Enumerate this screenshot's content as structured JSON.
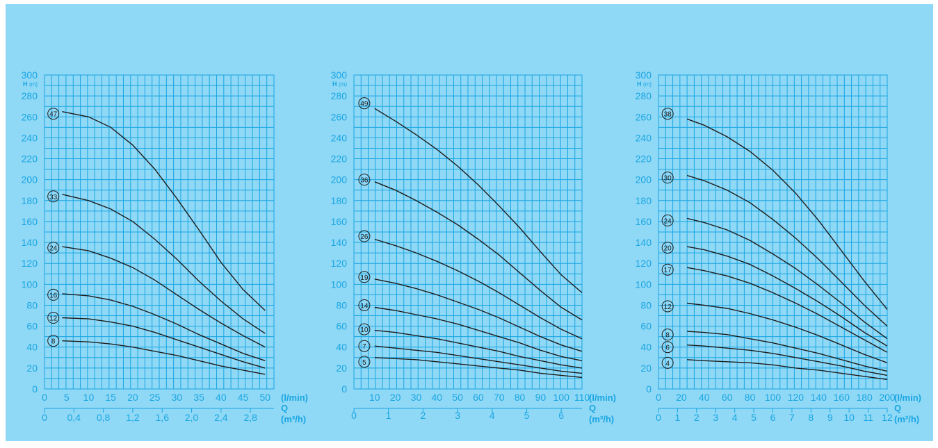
{
  "chart_data": [
    {
      "type": "line",
      "y_axis": {
        "label": "H",
        "unit": "(m)",
        "ticks": [
          0,
          20,
          40,
          60,
          80,
          100,
          120,
          140,
          160,
          180,
          200,
          220,
          240,
          260,
          280,
          300
        ],
        "ylim": [
          0,
          300
        ]
      },
      "x_axis": {
        "label": "Q",
        "unit_primary": "(l/min)",
        "unit_secondary": "(m³/h)",
        "xlim": [
          0,
          52
        ],
        "ticks_primary": [
          0,
          5,
          10,
          15,
          20,
          25,
          30,
          35,
          40,
          45,
          50
        ],
        "ticks_secondary": [
          {
            "value": 0,
            "label": "0"
          },
          {
            "value": 6.67,
            "label": "0,4"
          },
          {
            "value": 13.33,
            "label": "0,8"
          },
          {
            "value": 20,
            "label": "1,2"
          },
          {
            "value": 26.67,
            "label": "1,6"
          },
          {
            "value": 33.33,
            "label": "2,0"
          },
          {
            "value": 40,
            "label": "2,4"
          },
          {
            "value": 46.67,
            "label": "2,8"
          }
        ]
      },
      "series": [
        {
          "name": "47",
          "label_at": [
            2,
            263
          ],
          "x": [
            4,
            10,
            15,
            20,
            25,
            30,
            35,
            40,
            45,
            50
          ],
          "y": [
            265,
            260,
            250,
            233,
            210,
            182,
            152,
            121,
            95,
            75
          ]
        },
        {
          "name": "33",
          "label_at": [
            2,
            184
          ],
          "x": [
            4,
            10,
            15,
            20,
            25,
            30,
            35,
            40,
            45,
            50
          ],
          "y": [
            186,
            180,
            172,
            160,
            143,
            124,
            103,
            84,
            67,
            53
          ]
        },
        {
          "name": "24",
          "label_at": [
            2,
            135
          ],
          "x": [
            4,
            10,
            15,
            20,
            25,
            30,
            35,
            40,
            45,
            50
          ],
          "y": [
            136,
            132,
            125,
            116,
            104,
            90,
            76,
            63,
            51,
            40
          ]
        },
        {
          "name": "16",
          "label_at": [
            2,
            90
          ],
          "x": [
            4,
            10,
            15,
            20,
            25,
            30,
            35,
            40,
            45,
            50
          ],
          "y": [
            91,
            89,
            85,
            79,
            71,
            62,
            52,
            43,
            34,
            27
          ]
        },
        {
          "name": "12",
          "label_at": [
            2,
            68
          ],
          "x": [
            4,
            10,
            15,
            20,
            25,
            30,
            35,
            40,
            45,
            50
          ],
          "y": [
            68,
            67,
            64,
            60,
            54,
            47,
            40,
            33,
            26,
            20
          ]
        },
        {
          "name": "8",
          "label_at": [
            2,
            46
          ],
          "x": [
            4,
            10,
            15,
            20,
            25,
            30,
            35,
            40,
            45,
            50
          ],
          "y": [
            46,
            45,
            43,
            40,
            36,
            32,
            27,
            22,
            18,
            14
          ]
        }
      ]
    },
    {
      "type": "line",
      "y_axis": {
        "label": "H",
        "unit": "(m)",
        "ticks": [
          0,
          20,
          40,
          60,
          80,
          100,
          120,
          140,
          160,
          180,
          200,
          220,
          240,
          260,
          280,
          300
        ],
        "ylim": [
          0,
          300
        ]
      },
      "x_axis": {
        "label": "Q",
        "unit_primary": "(l/min)",
        "unit_secondary": "(m³/h)",
        "xlim": [
          0,
          110
        ],
        "ticks_primary": [
          10,
          20,
          30,
          40,
          50,
          60,
          70,
          80,
          90,
          100,
          110
        ],
        "ticks_secondary": [
          {
            "value": 0,
            "label": "0"
          },
          {
            "value": 16.67,
            "label": "1"
          },
          {
            "value": 33.33,
            "label": "2"
          },
          {
            "value": 50,
            "label": "3"
          },
          {
            "value": 66.67,
            "label": "4"
          },
          {
            "value": 83.33,
            "label": "5"
          },
          {
            "value": 100,
            "label": "6"
          }
        ]
      },
      "series": [
        {
          "name": "49",
          "label_at": [
            5,
            273
          ],
          "x": [
            10,
            20,
            30,
            40,
            50,
            60,
            70,
            80,
            90,
            100,
            110
          ],
          "y": [
            268,
            256,
            243,
            229,
            213,
            195,
            175,
            154,
            131,
            109,
            92
          ]
        },
        {
          "name": "36",
          "label_at": [
            5,
            200
          ],
          "x": [
            10,
            20,
            30,
            40,
            50,
            60,
            70,
            80,
            90,
            100,
            110
          ],
          "y": [
            198,
            190,
            180,
            169,
            157,
            143,
            128,
            111,
            94,
            78,
            66
          ]
        },
        {
          "name": "26",
          "label_at": [
            5,
            146
          ],
          "x": [
            10,
            20,
            30,
            40,
            50,
            60,
            70,
            80,
            90,
            100,
            110
          ],
          "y": [
            143,
            137,
            130,
            122,
            113,
            103,
            92,
            80,
            68,
            57,
            48
          ]
        },
        {
          "name": "19",
          "label_at": [
            5,
            107
          ],
          "x": [
            10,
            20,
            30,
            40,
            50,
            60,
            70,
            80,
            90,
            100,
            110
          ],
          "y": [
            105,
            101,
            96,
            90,
            83,
            76,
            68,
            59,
            50,
            42,
            36
          ]
        },
        {
          "name": "14",
          "label_at": [
            5,
            80
          ],
          "x": [
            10,
            20,
            30,
            40,
            50,
            60,
            70,
            80,
            90,
            100,
            110
          ],
          "y": [
            78,
            75,
            71,
            67,
            62,
            56,
            50,
            44,
            37,
            31,
            27
          ]
        },
        {
          "name": "10",
          "label_at": [
            5,
            57
          ],
          "x": [
            10,
            20,
            30,
            40,
            50,
            60,
            70,
            80,
            90,
            100,
            110
          ],
          "y": [
            56,
            54,
            51,
            48,
            44,
            40,
            36,
            31,
            27,
            23,
            20
          ]
        },
        {
          "name": "7",
          "label_at": [
            5,
            41
          ],
          "x": [
            10,
            20,
            30,
            40,
            50,
            60,
            70,
            80,
            90,
            100,
            110
          ],
          "y": [
            41,
            39,
            37,
            35,
            32,
            29,
            26,
            23,
            20,
            17,
            15
          ]
        },
        {
          "name": "5",
          "label_at": [
            5,
            26
          ],
          "x": [
            10,
            20,
            30,
            40,
            50,
            60,
            70,
            80,
            90,
            100,
            110
          ],
          "y": [
            30,
            29,
            28,
            26,
            24,
            22,
            20,
            18,
            15,
            13,
            11
          ]
        }
      ]
    },
    {
      "type": "line",
      "y_axis": {
        "label": "H",
        "unit": "(m)",
        "ticks": [
          0,
          20,
          40,
          60,
          80,
          100,
          120,
          140,
          160,
          180,
          200,
          220,
          240,
          260,
          280,
          300
        ],
        "ylim": [
          0,
          300
        ]
      },
      "x_axis": {
        "label": "Q",
        "unit_primary": "(l/min)",
        "unit_secondary": "(m³/h)",
        "xlim": [
          0,
          200
        ],
        "ticks_primary": [
          0,
          20,
          40,
          60,
          80,
          100,
          120,
          140,
          160,
          180,
          200
        ],
        "ticks_secondary": [
          {
            "value": 0,
            "label": "0"
          },
          {
            "value": 16.67,
            "label": "1"
          },
          {
            "value": 33.33,
            "label": "2"
          },
          {
            "value": 50,
            "label": "3"
          },
          {
            "value": 66.67,
            "label": "4"
          },
          {
            "value": 83.33,
            "label": "5"
          },
          {
            "value": 100,
            "label": "6"
          },
          {
            "value": 116.67,
            "label": "7"
          },
          {
            "value": 133.33,
            "label": "8"
          },
          {
            "value": 150,
            "label": "9"
          },
          {
            "value": 166.67,
            "label": "10"
          },
          {
            "value": 183.33,
            "label": "11"
          },
          {
            "value": 200,
            "label": "12"
          }
        ]
      },
      "series": [
        {
          "name": "38",
          "label_at": [
            8,
            263
          ],
          "x": [
            25,
            40,
            60,
            80,
            100,
            120,
            140,
            160,
            180,
            200
          ],
          "y": [
            258,
            252,
            241,
            227,
            209,
            187,
            161,
            132,
            103,
            76
          ]
        },
        {
          "name": "30",
          "label_at": [
            8,
            202
          ],
          "x": [
            25,
            40,
            60,
            80,
            100,
            120,
            140,
            160,
            180,
            200
          ],
          "y": [
            204,
            199,
            190,
            178,
            162,
            144,
            124,
            102,
            80,
            60
          ]
        },
        {
          "name": "24",
          "label_at": [
            8,
            161
          ],
          "x": [
            25,
            40,
            60,
            80,
            100,
            120,
            140,
            160,
            180,
            200
          ],
          "y": [
            163,
            159,
            152,
            142,
            129,
            115,
            99,
            82,
            64,
            48
          ]
        },
        {
          "name": "20",
          "label_at": [
            8,
            135
          ],
          "x": [
            25,
            40,
            60,
            80,
            100,
            120,
            140,
            160,
            180,
            200
          ],
          "y": [
            136,
            133,
            127,
            119,
            108,
            96,
            83,
            69,
            54,
            41
          ]
        },
        {
          "name": "17",
          "label_at": [
            8,
            114
          ],
          "x": [
            25,
            40,
            60,
            80,
            100,
            120,
            140,
            160,
            180,
            200
          ],
          "y": [
            116,
            113,
            108,
            101,
            92,
            82,
            71,
            59,
            47,
            35
          ]
        },
        {
          "name": "12",
          "label_at": [
            8,
            79
          ],
          "x": [
            25,
            40,
            60,
            80,
            100,
            120,
            140,
            160,
            180,
            200
          ],
          "y": [
            82,
            80,
            77,
            72,
            66,
            59,
            51,
            42,
            33,
            25
          ]
        },
        {
          "name": "8",
          "label_at": [
            8,
            52
          ],
          "x": [
            25,
            40,
            60,
            80,
            100,
            120,
            140,
            160,
            180,
            200
          ],
          "y": [
            55,
            54,
            52,
            48,
            44,
            39,
            34,
            28,
            22,
            17
          ]
        },
        {
          "name": "6",
          "label_at": [
            8,
            40
          ],
          "x": [
            25,
            40,
            60,
            80,
            100,
            120,
            140,
            160,
            180,
            200
          ],
          "y": [
            42,
            41,
            39,
            37,
            34,
            30,
            26,
            22,
            17,
            13
          ]
        },
        {
          "name": "4",
          "label_at": [
            8,
            25
          ],
          "x": [
            25,
            40,
            60,
            80,
            100,
            120,
            140,
            160,
            180,
            200
          ],
          "y": [
            28,
            27,
            26,
            25,
            23,
            20,
            18,
            15,
            12,
            9
          ]
        }
      ]
    }
  ]
}
